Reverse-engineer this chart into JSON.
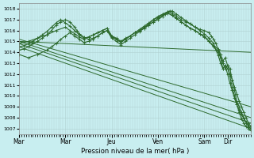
{
  "bg_color": "#c8eef0",
  "grid_color": "#b0d0d0",
  "line_color": "#2d6a2d",
  "marker": "+",
  "xlabel": "Pression niveau de la mer( hPa )",
  "ylim": [
    1006.5,
    1018.5
  ],
  "yticks": [
    1007,
    1008,
    1009,
    1010,
    1011,
    1012,
    1013,
    1014,
    1015,
    1016,
    1017,
    1018
  ],
  "xtick_labels": [
    "Mar",
    "Mar",
    "Jeu",
    "Ven",
    "Sam",
    "Dir"
  ],
  "xtick_positions": [
    0.0,
    0.2,
    0.4,
    0.6,
    0.8,
    0.9
  ],
  "xlim": [
    0.0,
    1.0
  ],
  "straight_lines": [
    {
      "x": [
        0.0,
        1.0
      ],
      "y": [
        1014.5,
        1007.0
      ]
    },
    {
      "x": [
        0.0,
        1.0
      ],
      "y": [
        1014.8,
        1007.5
      ]
    },
    {
      "x": [
        0.0,
        1.0
      ],
      "y": [
        1015.0,
        1008.0
      ]
    },
    {
      "x": [
        0.0,
        1.0
      ],
      "y": [
        1015.2,
        1009.0
      ]
    },
    {
      "x": [
        0.0,
        1.0
      ],
      "y": [
        1015.0,
        1014.0
      ]
    }
  ],
  "curved_series": [
    {
      "x": [
        0.0,
        0.02,
        0.04,
        0.06,
        0.08,
        0.1,
        0.12,
        0.14,
        0.16,
        0.18,
        0.2,
        0.22,
        0.24,
        0.25,
        0.26,
        0.28,
        0.3,
        0.32,
        0.34,
        0.36,
        0.38,
        0.4,
        0.42,
        0.44,
        0.46,
        0.48,
        0.5,
        0.52,
        0.54,
        0.56,
        0.58,
        0.6,
        0.62,
        0.63,
        0.64,
        0.65,
        0.66,
        0.68,
        0.7,
        0.72,
        0.74,
        0.76,
        0.78,
        0.8,
        0.82,
        0.83,
        0.84,
        0.85,
        0.86,
        0.87,
        0.88,
        0.89,
        0.9,
        0.91,
        0.92,
        0.93,
        0.94,
        0.95,
        0.96,
        0.97,
        0.98,
        0.99,
        1.0
      ],
      "y": [
        1014.2,
        1014.3,
        1014.5,
        1014.8,
        1015.0,
        1015.3,
        1015.6,
        1016.0,
        1016.5,
        1016.8,
        1017.0,
        1016.8,
        1016.3,
        1016.0,
        1015.7,
        1015.4,
        1015.2,
        1015.3,
        1015.5,
        1015.8,
        1016.0,
        1015.4,
        1015.2,
        1015.0,
        1015.3,
        1015.5,
        1015.8,
        1016.0,
        1016.2,
        1016.5,
        1016.8,
        1017.0,
        1017.3,
        1017.5,
        1017.7,
        1017.8,
        1017.6,
        1017.3,
        1017.0,
        1016.8,
        1016.6,
        1016.3,
        1016.1,
        1016.0,
        1015.8,
        1015.5,
        1015.2,
        1014.8,
        1014.2,
        1013.5,
        1012.5,
        1012.8,
        1012.5,
        1012.0,
        1011.5,
        1010.8,
        1010.2,
        1009.5,
        1009.0,
        1008.5,
        1008.0,
        1007.5,
        1007.2
      ]
    },
    {
      "x": [
        0.0,
        0.02,
        0.04,
        0.06,
        0.08,
        0.1,
        0.12,
        0.14,
        0.16,
        0.18,
        0.2,
        0.22,
        0.24,
        0.26,
        0.28,
        0.3,
        0.32,
        0.34,
        0.36,
        0.38,
        0.4,
        0.42,
        0.44,
        0.46,
        0.48,
        0.5,
        0.52,
        0.54,
        0.56,
        0.58,
        0.6,
        0.62,
        0.64,
        0.66,
        0.68,
        0.7,
        0.72,
        0.74,
        0.76,
        0.78,
        0.8,
        0.82,
        0.84,
        0.85,
        0.86,
        0.87,
        0.88,
        0.89,
        0.9,
        0.91,
        0.92,
        0.93,
        0.94,
        0.95,
        0.96,
        0.97,
        0.98,
        0.99,
        1.0
      ],
      "y": [
        1014.5,
        1014.6,
        1014.8,
        1015.0,
        1015.3,
        1015.6,
        1015.9,
        1016.3,
        1016.7,
        1017.0,
        1016.7,
        1016.4,
        1016.0,
        1015.6,
        1015.3,
        1015.4,
        1015.6,
        1015.8,
        1016.0,
        1016.2,
        1015.5,
        1015.3,
        1015.0,
        1015.2,
        1015.5,
        1015.8,
        1016.0,
        1016.3,
        1016.6,
        1017.0,
        1017.2,
        1017.5,
        1017.7,
        1017.8,
        1017.5,
        1017.2,
        1016.9,
        1016.6,
        1016.3,
        1016.0,
        1015.7,
        1015.3,
        1014.8,
        1014.2,
        1013.7,
        1013.0,
        1012.5,
        1012.8,
        1012.0,
        1011.2,
        1010.5,
        1009.8,
        1009.2,
        1008.7,
        1008.3,
        1007.9,
        1007.6,
        1007.3,
        1007.0
      ]
    },
    {
      "x": [
        0.0,
        0.04,
        0.08,
        0.12,
        0.14,
        0.16,
        0.18,
        0.2,
        0.22,
        0.24,
        0.26,
        0.28,
        0.3,
        0.32,
        0.34,
        0.36,
        0.38,
        0.4,
        0.42,
        0.44,
        0.46,
        0.48,
        0.5,
        0.52,
        0.54,
        0.56,
        0.58,
        0.6,
        0.62,
        0.64,
        0.66,
        0.68,
        0.7,
        0.72,
        0.74,
        0.76,
        0.78,
        0.8,
        0.82,
        0.84,
        0.86,
        0.87,
        0.88,
        0.89,
        0.9,
        0.91,
        0.92,
        0.93,
        0.94,
        0.95,
        0.96,
        0.97,
        0.98,
        0.99,
        1.0
      ],
      "y": [
        1013.8,
        1013.5,
        1013.8,
        1014.2,
        1014.5,
        1014.8,
        1015.2,
        1015.5,
        1015.8,
        1015.5,
        1015.2,
        1014.9,
        1015.0,
        1015.2,
        1015.5,
        1015.8,
        1016.0,
        1015.3,
        1015.0,
        1014.7,
        1015.0,
        1015.3,
        1015.6,
        1015.9,
        1016.2,
        1016.5,
        1016.8,
        1017.1,
        1017.4,
        1017.6,
        1017.4,
        1017.1,
        1016.8,
        1016.5,
        1016.2,
        1016.0,
        1015.7,
        1015.5,
        1015.0,
        1014.5,
        1014.0,
        1013.5,
        1013.0,
        1012.5,
        1012.8,
        1012.5,
        1011.5,
        1010.5,
        1009.5,
        1009.0,
        1008.5,
        1008.0,
        1007.5,
        1007.2,
        1007.0
      ]
    },
    {
      "x": [
        0.0,
        0.04,
        0.08,
        0.12,
        0.16,
        0.2,
        0.22,
        0.24,
        0.26,
        0.28,
        0.3,
        0.32,
        0.34,
        0.36,
        0.38,
        0.4,
        0.42,
        0.44,
        0.46,
        0.48,
        0.5,
        0.52,
        0.54,
        0.56,
        0.58,
        0.6,
        0.62,
        0.64,
        0.66,
        0.68,
        0.7,
        0.72,
        0.74,
        0.76,
        0.78,
        0.8,
        0.82,
        0.84,
        0.86,
        0.87,
        0.88,
        0.89,
        0.9,
        0.91,
        0.92,
        0.93,
        0.94,
        0.95,
        0.96,
        0.97,
        0.98,
        0.99,
        1.0
      ],
      "y": [
        1014.8,
        1015.0,
        1015.3,
        1015.6,
        1016.0,
        1016.3,
        1016.0,
        1015.7,
        1015.4,
        1015.2,
        1015.4,
        1015.6,
        1015.8,
        1016.0,
        1016.2,
        1015.5,
        1015.2,
        1014.9,
        1015.2,
        1015.5,
        1015.8,
        1016.1,
        1016.4,
        1016.7,
        1017.0,
        1017.3,
        1017.5,
        1017.7,
        1017.4,
        1017.1,
        1016.8,
        1016.5,
        1016.2,
        1016.0,
        1015.7,
        1015.4,
        1015.0,
        1014.6,
        1014.3,
        1013.8,
        1013.2,
        1013.5,
        1012.8,
        1011.8,
        1010.8,
        1010.0,
        1009.2,
        1008.5,
        1007.9,
        1007.5,
        1007.2,
        1007.0,
        1006.8
      ]
    }
  ]
}
